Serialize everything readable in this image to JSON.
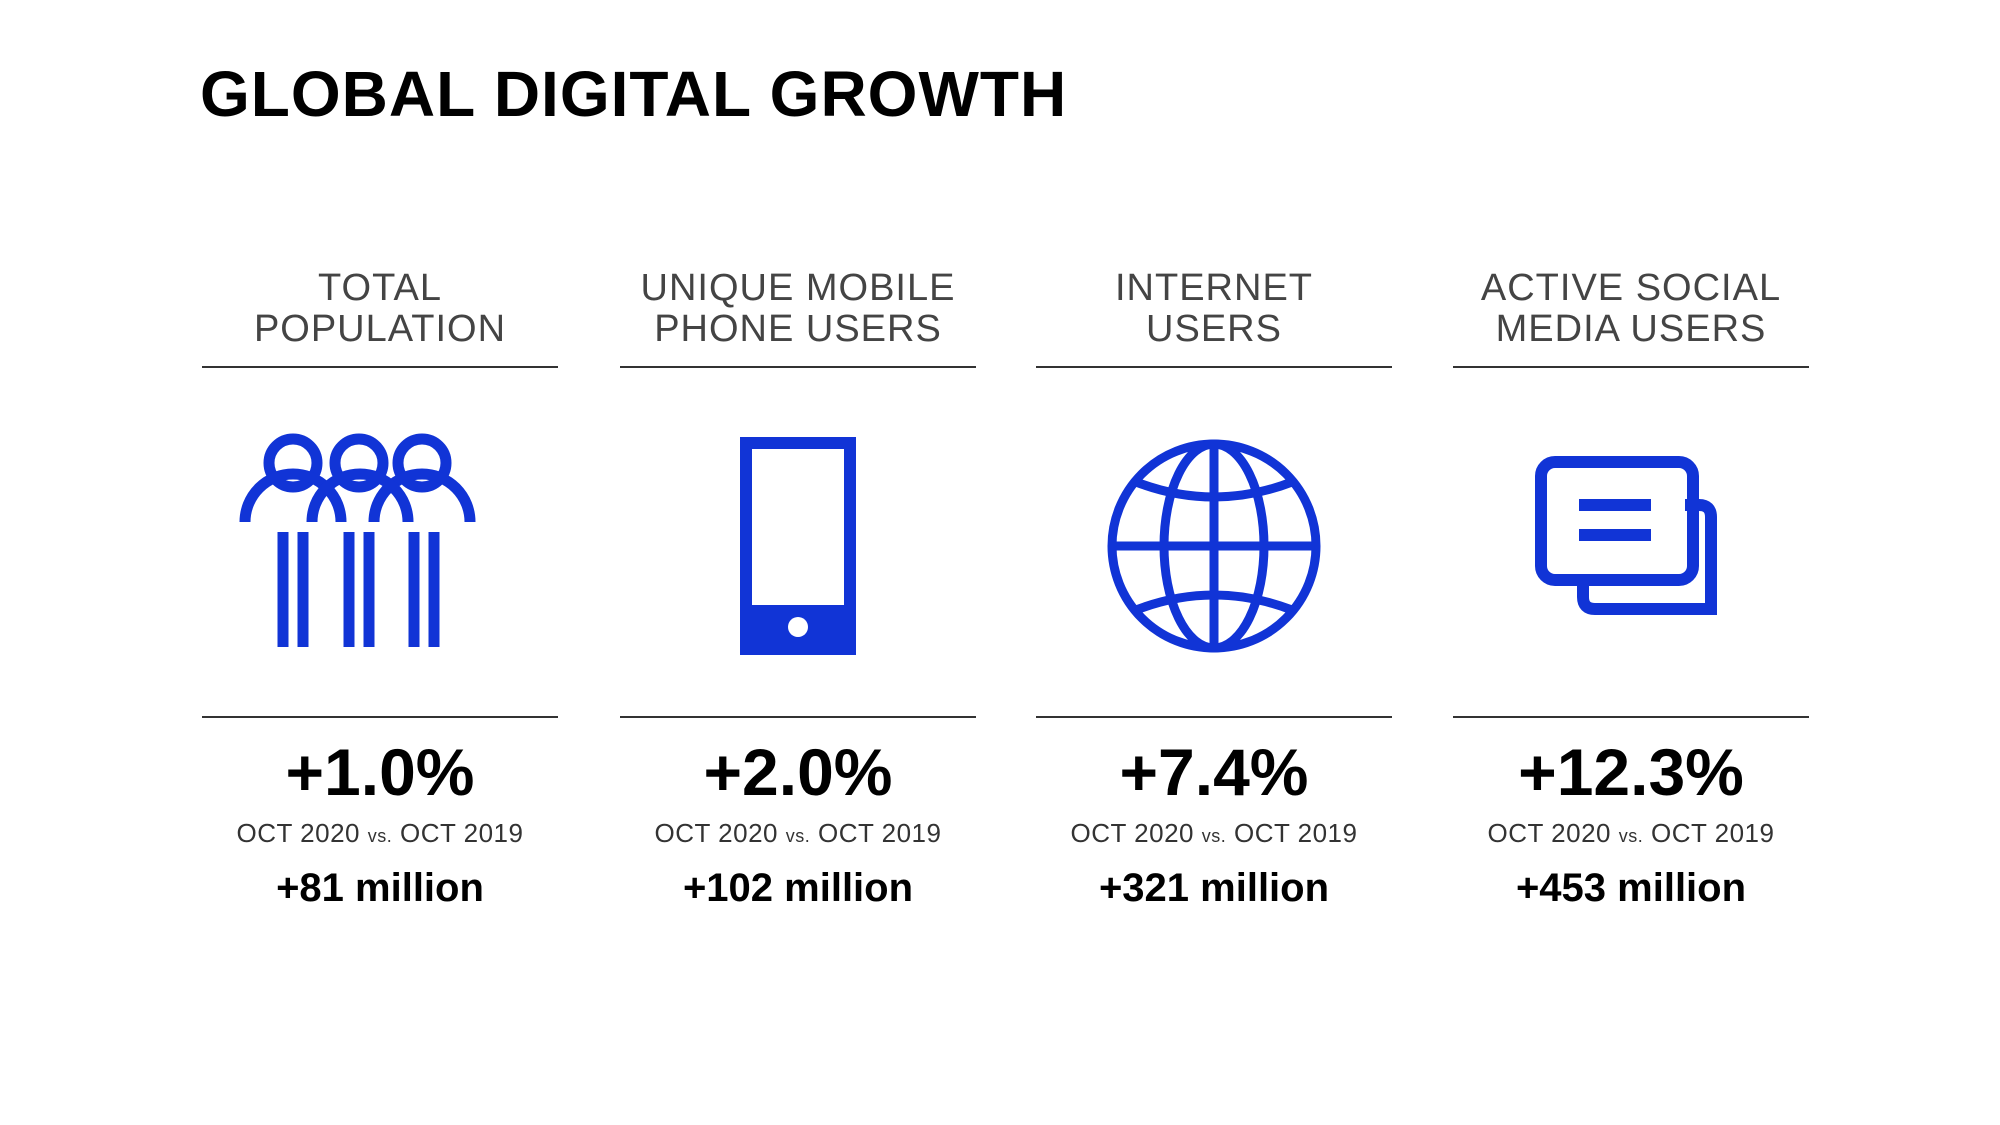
{
  "title": "GLOBAL DIGITAL GROWTH",
  "accent_color": "#1134d6",
  "stats": [
    {
      "heading_line1": "TOTAL",
      "heading_line2": "POPULATION",
      "icon": "people-icon",
      "change": "+1.0%",
      "period_from": "OCT 2020",
      "vs": "vs.",
      "period_to": "OCT 2019",
      "absolute": "+81 million"
    },
    {
      "heading_line1": "UNIQUE MOBILE",
      "heading_line2": "PHONE USERS",
      "icon": "mobile-phone-icon",
      "change": "+2.0%",
      "period_from": "OCT 2020",
      "vs": "vs.",
      "period_to": "OCT 2019",
      "absolute": "+102 million"
    },
    {
      "heading_line1": "INTERNET",
      "heading_line2": "USERS",
      "icon": "globe-icon",
      "change": "+7.4%",
      "period_from": "OCT 2020",
      "vs": "vs.",
      "period_to": "OCT 2019",
      "absolute": "+321 million"
    },
    {
      "heading_line1": "ACTIVE SOCIAL",
      "heading_line2": "MEDIA USERS",
      "icon": "chat-bubbles-icon",
      "change": "+12.3%",
      "period_from": "OCT 2020",
      "vs": "vs.",
      "period_to": "OCT 2019",
      "absolute": "+453 million"
    }
  ]
}
